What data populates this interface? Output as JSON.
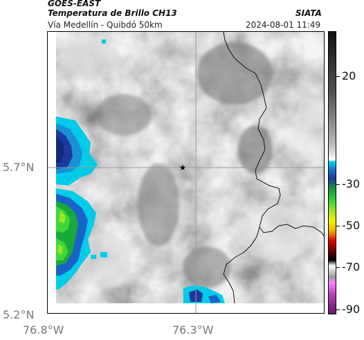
{
  "header": {
    "satellite": "GOES-EAST",
    "product": "Temperatura de Brillo CH13",
    "region": "Vía Medellín - Quibdó 50km",
    "organization": "SIATA",
    "datetime": "2024-08-01 11:49"
  },
  "axes": {
    "y_ticks": [
      "5.7°N",
      "5.2°N"
    ],
    "x_ticks": [
      "76.8°W",
      "76.3°W"
    ]
  },
  "colorbar": {
    "labels": [
      "20",
      "-30",
      "-50",
      "-70",
      "-90"
    ]
  },
  "marker": {
    "icon": "star-icon"
  },
  "colors": {
    "land_gray": "#b5b5b5",
    "cold_cyan": "#00c8e6",
    "deep_blue": "#1e3c9c",
    "green": "#34d134",
    "grid": "#9a9a9a"
  }
}
